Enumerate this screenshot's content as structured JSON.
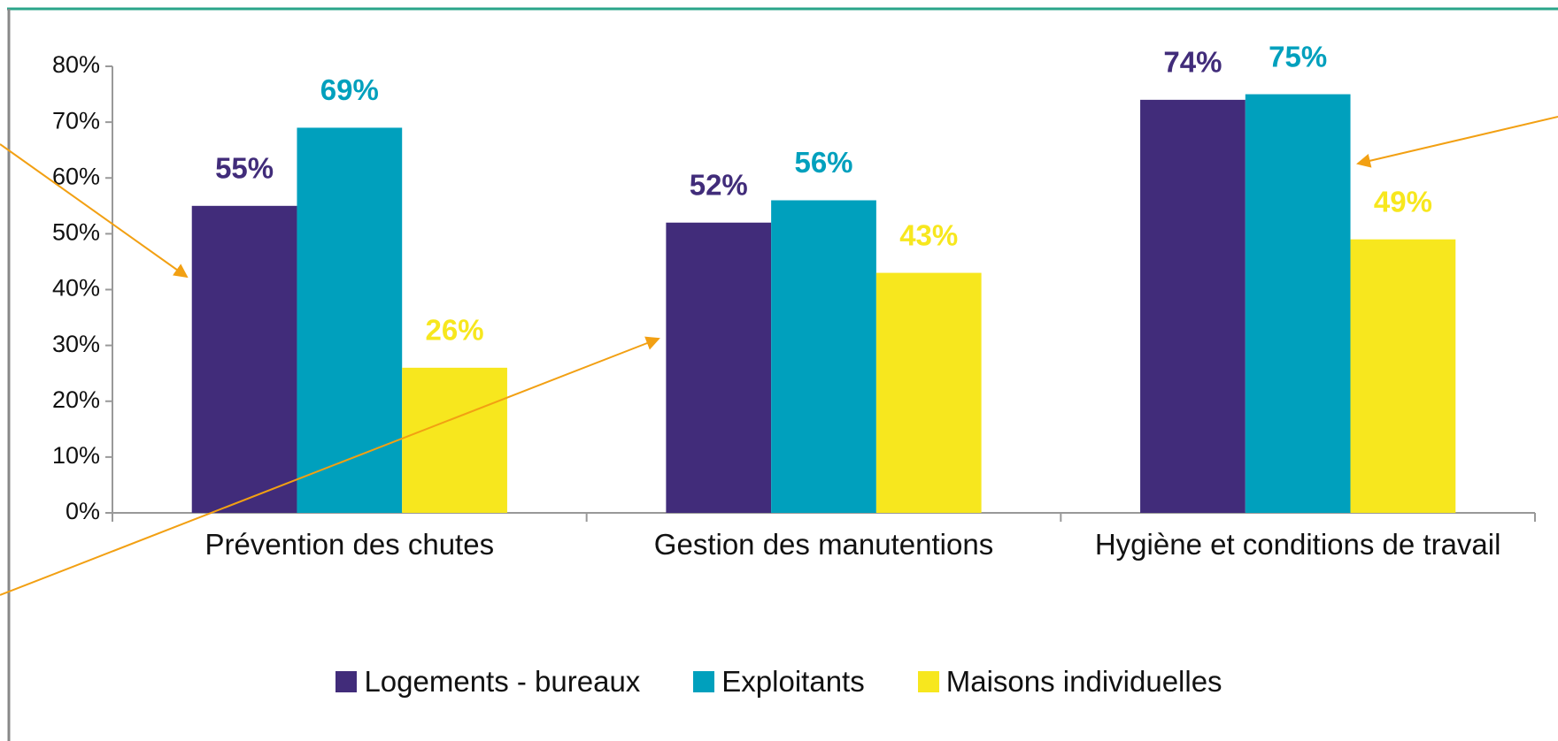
{
  "chart_data": {
    "type": "bar",
    "categories": [
      "Prévention des chutes",
      "Gestion des manutentions",
      "Hygiène et conditions de travail"
    ],
    "series": [
      {
        "name": "Logements - bureaux",
        "color": "#412c7a",
        "values": [
          55,
          52,
          74
        ],
        "value_labels": [
          "55%",
          "52%",
          "74%"
        ]
      },
      {
        "name": "Exploitants",
        "color": "#00a0bd",
        "values": [
          69,
          56,
          75
        ],
        "value_labels": [
          "69%",
          "56%",
          "75%"
        ]
      },
      {
        "name": "Maisons individuelles",
        "color": "#f7e71e",
        "values": [
          26,
          43,
          49
        ],
        "value_labels": [
          "26%",
          "43%",
          "49%"
        ]
      }
    ],
    "ylim": [
      0,
      80
    ],
    "yticks": [
      {
        "value": 0,
        "label": "0%"
      },
      {
        "value": 10,
        "label": "10%"
      },
      {
        "value": 20,
        "label": "20%"
      },
      {
        "value": 30,
        "label": "30%"
      },
      {
        "value": 40,
        "label": "40%"
      },
      {
        "value": 50,
        "label": "50%"
      },
      {
        "value": 60,
        "label": "60%"
      },
      {
        "value": 70,
        "label": "70%"
      },
      {
        "value": 80,
        "label": "80%"
      }
    ],
    "grid": false,
    "legend": "bottom"
  }
}
